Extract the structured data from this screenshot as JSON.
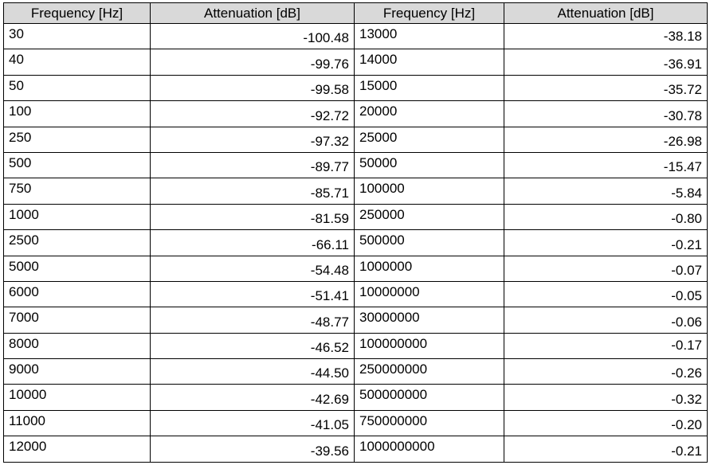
{
  "table": {
    "headers": [
      "Frequency [Hz]",
      "Attenuation [dB]",
      "Frequency [Hz]",
      "Attenuation [dB]"
    ],
    "rows": [
      {
        "f1": "30",
        "a1": "-100.48",
        "f2": "13000",
        "a2": "-38.18"
      },
      {
        "f1": "40",
        "a1": "-99.76",
        "f2": "14000",
        "a2": "-36.91"
      },
      {
        "f1": "50",
        "a1": "-99.58",
        "f2": "15000",
        "a2": "-35.72"
      },
      {
        "f1": "100",
        "a1": "-92.72",
        "f2": "20000",
        "a2": "-30.78"
      },
      {
        "f1": "250",
        "a1": "-97.32",
        "f2": "25000",
        "a2": "-26.98"
      },
      {
        "f1": "500",
        "a1": "-89.77",
        "f2": "50000",
        "a2": "-15.47"
      },
      {
        "f1": "750",
        "a1": "-85.71",
        "f2": "100000",
        "a2": "-5.84"
      },
      {
        "f1": "1000",
        "a1": "-81.59",
        "f2": "250000",
        "a2": "-0.80"
      },
      {
        "f1": "2500",
        "a1": "-66.11",
        "f2": "500000",
        "a2": "-0.21"
      },
      {
        "f1": "5000",
        "a1": "-54.48",
        "f2": "1000000",
        "a2": "-0.07"
      },
      {
        "f1": "6000",
        "a1": "-51.41",
        "f2": "10000000",
        "a2": "-0.05"
      },
      {
        "f1": "7000",
        "a1": "-48.77",
        "f2": "30000000",
        "a2": "-0.06"
      },
      {
        "f1": "8000",
        "a1": "-46.52",
        "f2": "100000000",
        "a2": "-0.17"
      },
      {
        "f1": "9000",
        "a1": "-44.50",
        "f2": "250000000",
        "a2": "-0.26"
      },
      {
        "f1": "10000",
        "a1": "-42.69",
        "f2": "500000000",
        "a2": "-0.32"
      },
      {
        "f1": "11000",
        "a1": "-41.05",
        "f2": "750000000",
        "a2": "-0.20"
      },
      {
        "f1": "12000",
        "a1": "-39.56",
        "f2": "1000000000",
        "a2": "-0.21"
      }
    ]
  },
  "colors": {
    "header_background": "#d9d9d9",
    "border": "#000000",
    "text": "#000000"
  }
}
